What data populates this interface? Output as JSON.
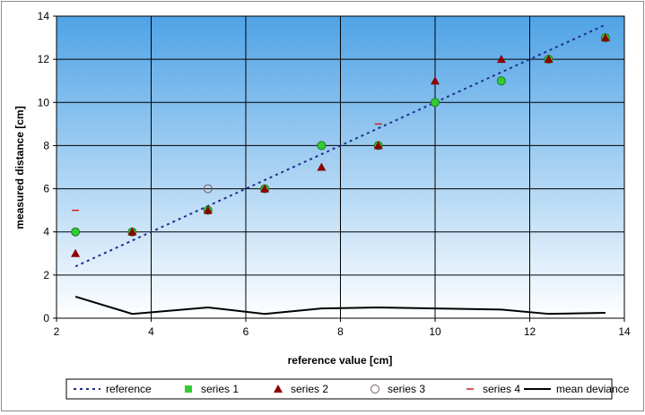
{
  "chart_data": {
    "type": "scatter",
    "title": "",
    "xlabel": "reference value [cm]",
    "ylabel": "measured distance [cm]",
    "xlim": [
      2,
      14
    ],
    "ylim": [
      0,
      14
    ],
    "xticks": [
      2,
      4,
      6,
      8,
      10,
      12,
      14
    ],
    "yticks": [
      0,
      2,
      4,
      6,
      8,
      10,
      12,
      14
    ],
    "grid": true,
    "legend_position": "bottom",
    "background": {
      "top": "#4fa3e6",
      "bottom": "#ffffff"
    },
    "series": [
      {
        "name": "reference",
        "kind": "line",
        "style": "dotted",
        "color": "#1f2f8f",
        "x": [
          2.4,
          3.6,
          5.2,
          6.4,
          7.6,
          8.8,
          10.0,
          11.4,
          12.4,
          13.6
        ],
        "y": [
          2.4,
          3.6,
          5.2,
          6.4,
          7.6,
          8.8,
          10.0,
          11.4,
          12.4,
          13.6
        ]
      },
      {
        "name": "series 1",
        "kind": "marker",
        "marker": "circle-filled",
        "color": "#33cc33",
        "x": [
          2.4,
          3.6,
          5.2,
          6.4,
          7.6,
          8.8,
          10.0,
          11.4,
          12.4,
          13.6
        ],
        "y": [
          4,
          4,
          5,
          6,
          8,
          8,
          10,
          11,
          12,
          13
        ]
      },
      {
        "name": "series 2",
        "kind": "marker",
        "marker": "triangle",
        "color": "#8b0000",
        "x": [
          2.4,
          3.6,
          5.2,
          6.4,
          7.6,
          8.8,
          10.0,
          11.4,
          12.4,
          13.6
        ],
        "y": [
          3,
          4,
          5,
          6,
          7,
          8,
          11,
          12,
          12,
          13
        ]
      },
      {
        "name": "series 3",
        "kind": "marker",
        "marker": "circle-open",
        "color": "#7a5c5c",
        "x": [
          5.2
        ],
        "y": [
          6
        ]
      },
      {
        "name": "series 4",
        "kind": "marker",
        "marker": "dash",
        "color": "#cc2222",
        "x": [
          2.4,
          8.8
        ],
        "y": [
          5,
          9
        ]
      },
      {
        "name": "mean deviance",
        "kind": "line",
        "style": "solid",
        "color": "#000000",
        "x": [
          2.4,
          3.6,
          5.2,
          6.4,
          7.6,
          8.8,
          10.0,
          11.4,
          12.4,
          13.6
        ],
        "y": [
          1.0,
          0.2,
          0.5,
          0.2,
          0.45,
          0.5,
          0.45,
          0.4,
          0.2,
          0.25
        ]
      }
    ]
  }
}
